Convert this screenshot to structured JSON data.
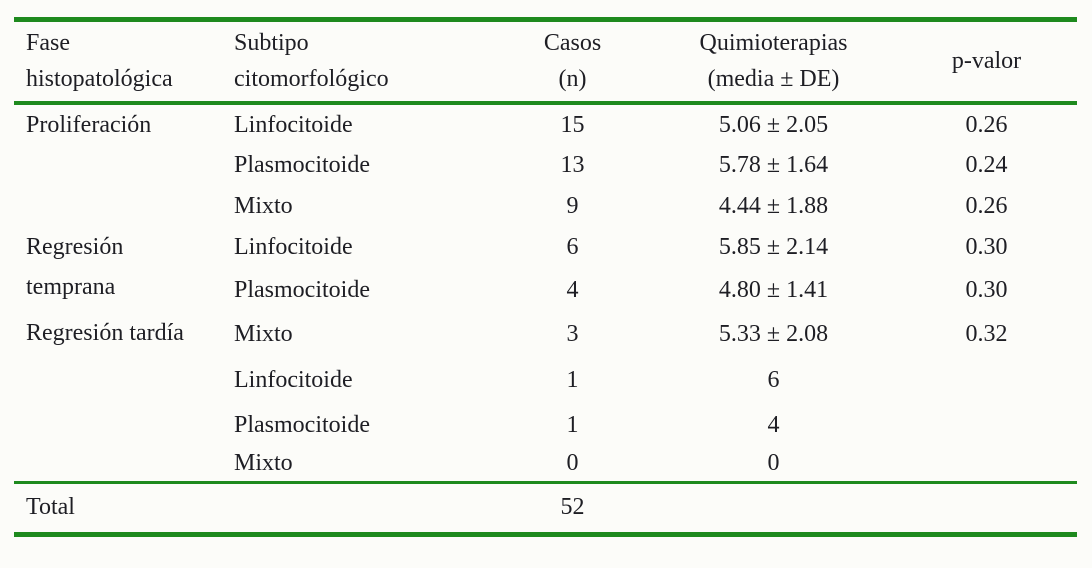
{
  "colors": {
    "rule_green": "#1e8a1e",
    "background": "#fcfcf9",
    "text": "#1e1e24"
  },
  "table": {
    "columns": [
      {
        "lines": [
          "Fase",
          "histopatológica"
        ]
      },
      {
        "lines": [
          "Subtipo",
          "citomorfológico"
        ]
      },
      {
        "lines": [
          "Casos",
          "(n)"
        ]
      },
      {
        "lines": [
          "Quimioterapias",
          "(media ± DE)"
        ]
      },
      {
        "lines": [
          "p-valor"
        ]
      }
    ],
    "rows": [
      {
        "fase": "Proliferación",
        "subtipo": "Linfocitoide",
        "casos": "15",
        "quimioterapias": "5.06 ± 2.05",
        "p_valor": "0.26"
      },
      {
        "fase": "",
        "subtipo": "Plasmocitoide",
        "casos": "13",
        "quimioterapias": "5.78 ± 1.64",
        "p_valor": "0.24"
      },
      {
        "fase": "",
        "subtipo": "Mixto",
        "casos": "9",
        "quimioterapias": "4.44 ± 1.88",
        "p_valor": "0.26"
      },
      {
        "fase": "Regresión temprana",
        "subtipo": "Linfocitoide",
        "casos": "6",
        "quimioterapias": "5.85 ± 2.14",
        "p_valor": "0.30"
      },
      {
        "fase": "",
        "subtipo": "Plasmocitoide",
        "casos": "4",
        "quimioterapias": "4.80 ± 1.41",
        "p_valor": "0.30"
      },
      {
        "fase": "Regresión tardía",
        "subtipo": "Mixto",
        "casos": "3",
        "quimioterapias": "5.33 ± 2.08",
        "p_valor": "0.32"
      },
      {
        "fase": "",
        "subtipo": "Linfocitoide",
        "casos": "1",
        "quimioterapias": "6",
        "p_valor": ""
      },
      {
        "fase": "",
        "subtipo": "Plasmocitoide",
        "casos": "1",
        "quimioterapias": "4",
        "p_valor": ""
      },
      {
        "fase": "",
        "subtipo": "Mixto",
        "casos": "0",
        "quimioterapias": "0",
        "p_valor": ""
      }
    ],
    "total": {
      "label": "Total",
      "casos": "52",
      "quimioterapias": "",
      "p_valor": ""
    }
  }
}
